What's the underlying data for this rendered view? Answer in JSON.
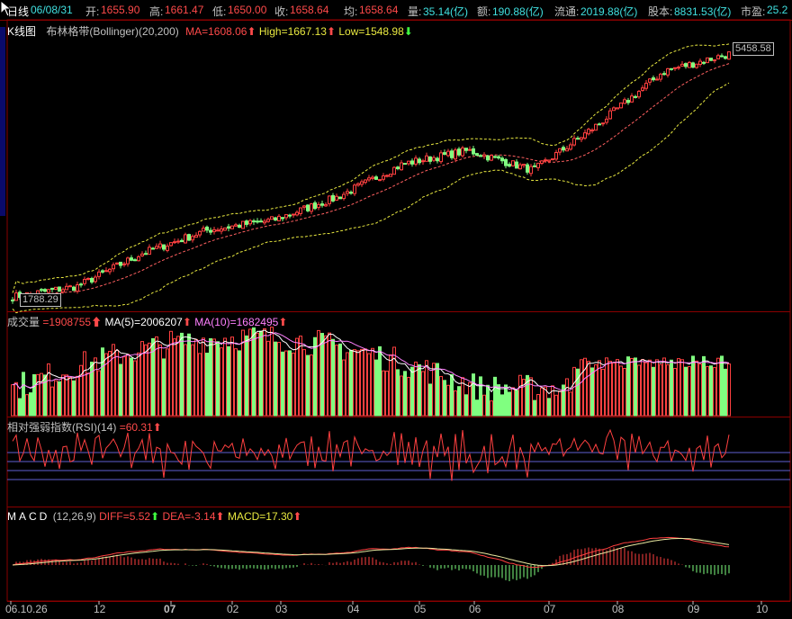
{
  "header": {
    "period_label": "日线",
    "date": "06/08/31",
    "open_label": "开:",
    "open": "1655.90",
    "high_label": "高:",
    "high": "1661.47",
    "low_label": "低:",
    "low": "1650.00",
    "close_label": "收:",
    "close": "1658.64",
    "avg_label": "均:",
    "avg": "1658.64",
    "volume_label": "量:",
    "volume": "35.14(亿)",
    "amount_label": "额:",
    "amount": "190.88(亿)",
    "float_label": "流通:",
    "float": "2019.88(亿)",
    "capital_label": "股本:",
    "capital": "8831.53(亿)",
    "pe_label": "市盈:",
    "pe": "25.2"
  },
  "kline_panel": {
    "title": "K线图",
    "indicator": "布林格带(Bollinger)(20,200)",
    "ma": "MA=1608.06",
    "high": "High=1667.13",
    "low": "Low=1548.98",
    "max_label": "5458.58",
    "min_label": "1788.29"
  },
  "volume_panel": {
    "title": "成交量",
    "vol": "=1908755",
    "ma5": "MA(5)=2006207",
    "ma10": "MA(10)=1682495"
  },
  "rsi_panel": {
    "title": "相对强弱指数(RSI)(14)",
    "value": "=60.31"
  },
  "macd_panel": {
    "title": "MACD",
    "params": "(12,26,9)",
    "diff": "DIFF=5.52",
    "dea": "DEA=-3.14",
    "macd": "MACD=17.30"
  },
  "x_axis": {
    "labels": [
      "06.10.26",
      "12",
      "07",
      "02",
      "03",
      "04",
      "05",
      "06",
      "07",
      "08",
      "09",
      "10"
    ]
  },
  "colors": {
    "up": "#ff4040",
    "down": "#80ff80",
    "boll_mid": "#ff6060",
    "boll_band": "#e8e840",
    "panel_border": "#8a0000",
    "ma5": "#ffffff",
    "ma10": "#ff80ff"
  },
  "chart_data": {
    "type": "line",
    "xlabel": "",
    "ylabel": "",
    "categories": [
      "06.10.26",
      "12",
      "07",
      "02",
      "03",
      "04",
      "05",
      "06",
      "07",
      "08",
      "09",
      "10"
    ],
    "series": [
      {
        "values": [
          1788,
          1950,
          2450,
          2800,
          2950,
          3300,
          3800,
          4000,
          3700,
          4400,
          5200,
          5458
        ]
      }
    ],
    "ylim": [
      1788.29,
      5458.58
    ]
  }
}
